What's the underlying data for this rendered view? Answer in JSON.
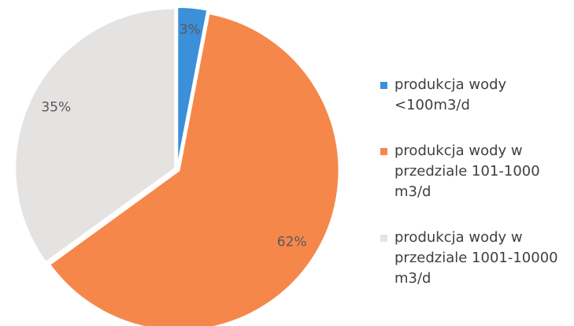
{
  "chart_data": {
    "type": "pie",
    "categories": [
      "produkcja wody <100m3/d",
      "produkcja wody w przedziale 101-1000 m3/d",
      "produkcja wody w przedziale 1001-10000 m3/d"
    ],
    "values": [
      3,
      62,
      35
    ],
    "value_labels": [
      "3%",
      "62%",
      "35%"
    ],
    "colors": [
      "#3c8fd9",
      "#f5874b",
      "#e5e2e2"
    ],
    "legend": "right"
  }
}
